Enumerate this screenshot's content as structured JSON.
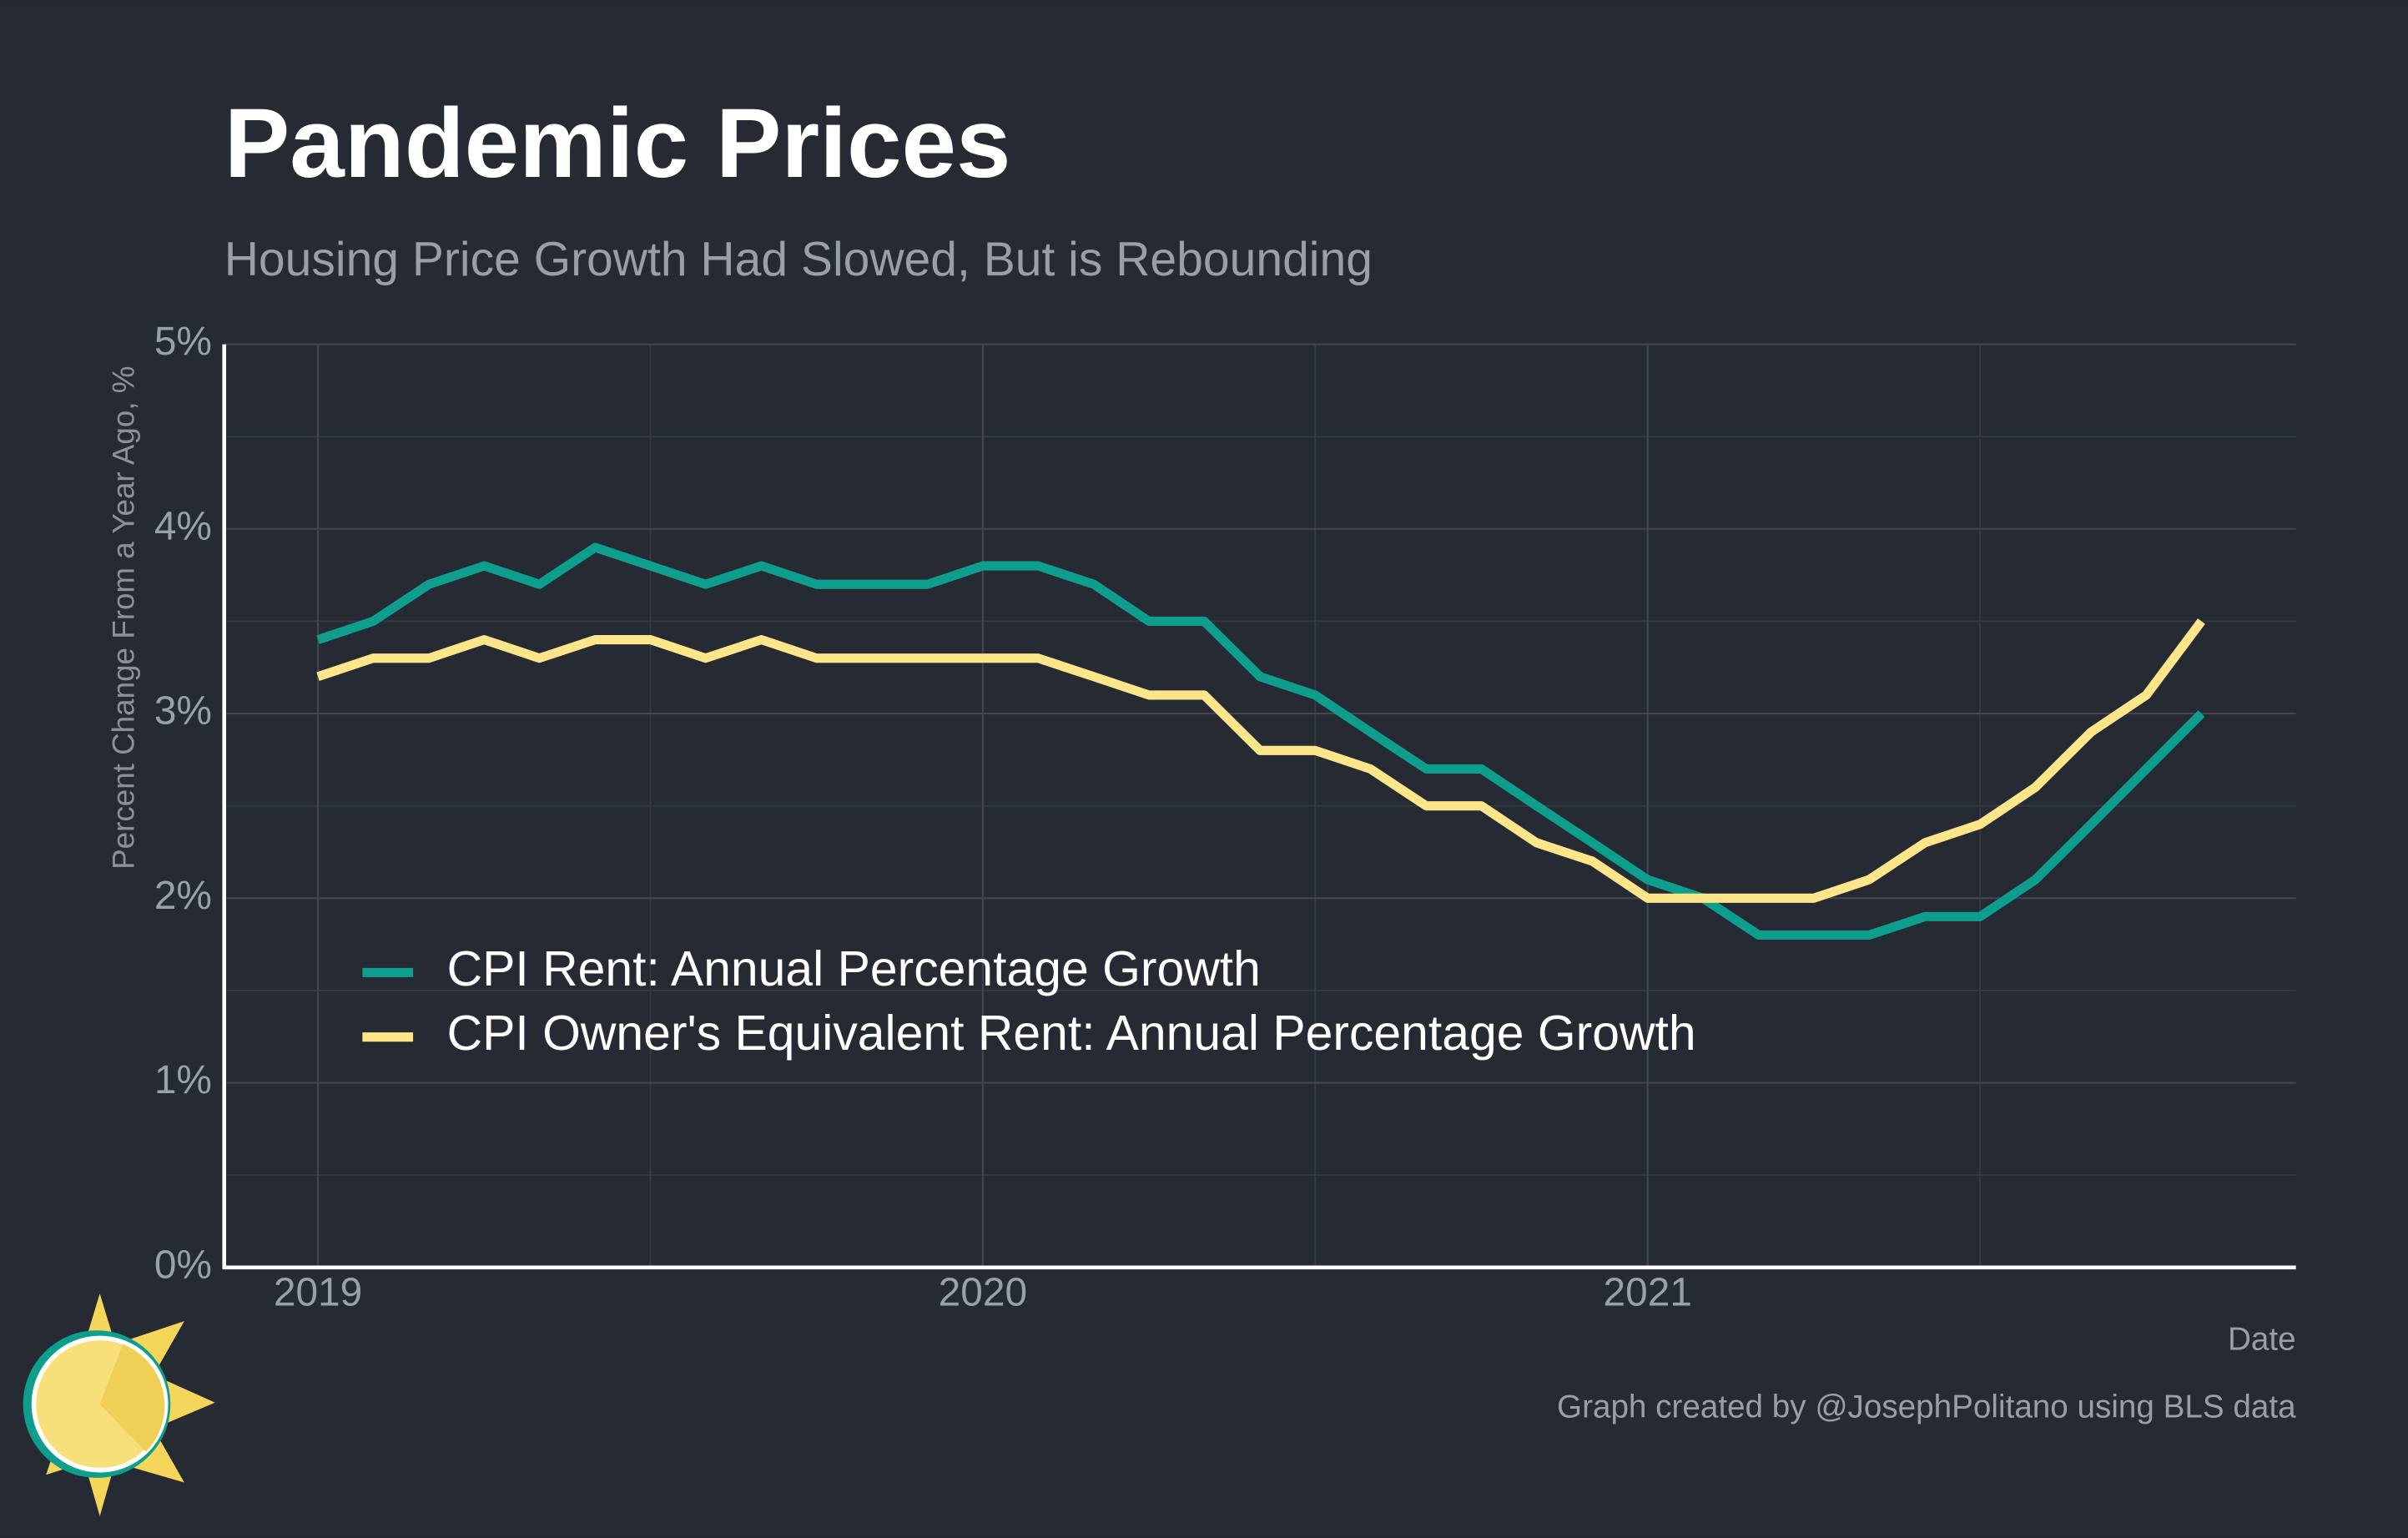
{
  "chart_data": {
    "type": "line",
    "title": "Pandemic Prices",
    "subtitle": "Housing Price Growth Had Slowed, But is Rebounding",
    "ylabel": "Percent Change From a Year Ago, %",
    "xlabel": "Date",
    "caption": "Graph created by @JosephPolitano using BLS data",
    "x": [
      2019,
      2019.083,
      2019.167,
      2019.25,
      2019.333,
      2019.417,
      2019.5,
      2019.583,
      2019.667,
      2019.75,
      2019.833,
      2019.917,
      2020,
      2020.083,
      2020.167,
      2020.25,
      2020.333,
      2020.417,
      2020.5,
      2020.583,
      2020.667,
      2020.75,
      2020.833,
      2020.917,
      2021,
      2021.083,
      2021.167,
      2021.25,
      2021.333,
      2021.417,
      2021.5,
      2021.583,
      2021.667,
      2021.75,
      2021.833
    ],
    "series": [
      {
        "name": "CPI Rent: Annual Percentage Growth",
        "color": "#0e9e8e",
        "values": [
          3.4,
          3.5,
          3.7,
          3.8,
          3.7,
          3.9,
          3.8,
          3.7,
          3.8,
          3.7,
          3.7,
          3.7,
          3.8,
          3.8,
          3.7,
          3.5,
          3.5,
          3.2,
          3.1,
          2.9,
          2.7,
          2.7,
          2.5,
          2.3,
          2.1,
          2.0,
          1.8,
          1.8,
          1.8,
          1.9,
          1.9,
          2.1,
          2.4,
          2.7,
          3.0
        ]
      },
      {
        "name": "CPI Owner's Equivalent Rent: Annual Percentage Growth",
        "color": "#fde58a",
        "values": [
          3.2,
          3.3,
          3.3,
          3.4,
          3.3,
          3.4,
          3.4,
          3.3,
          3.4,
          3.3,
          3.3,
          3.3,
          3.3,
          3.3,
          3.2,
          3.1,
          3.1,
          2.8,
          2.8,
          2.7,
          2.5,
          2.5,
          2.3,
          2.2,
          2.0,
          2.0,
          2.0,
          2.0,
          2.1,
          2.3,
          2.4,
          2.6,
          2.9,
          3.1,
          3.5
        ]
      }
    ],
    "xlim": [
      2018.859,
      2021.975
    ],
    "xticks": [
      2019,
      2020,
      2021
    ],
    "xminor": [
      2019.5,
      2020.5,
      2021.5
    ],
    "ylim": [
      0,
      5
    ],
    "yticks": [
      {
        "value": 0,
        "label": "0%"
      },
      {
        "value": 1,
        "label": "1%"
      },
      {
        "value": 2,
        "label": "2%"
      },
      {
        "value": 3,
        "label": "3%"
      },
      {
        "value": 4,
        "label": "4%"
      },
      {
        "value": 5,
        "label": "5%"
      }
    ],
    "yminor": [
      0.5,
      1.5,
      2.5,
      3.5,
      4.5
    ],
    "grid": true,
    "legend_loc": "lower left"
  }
}
